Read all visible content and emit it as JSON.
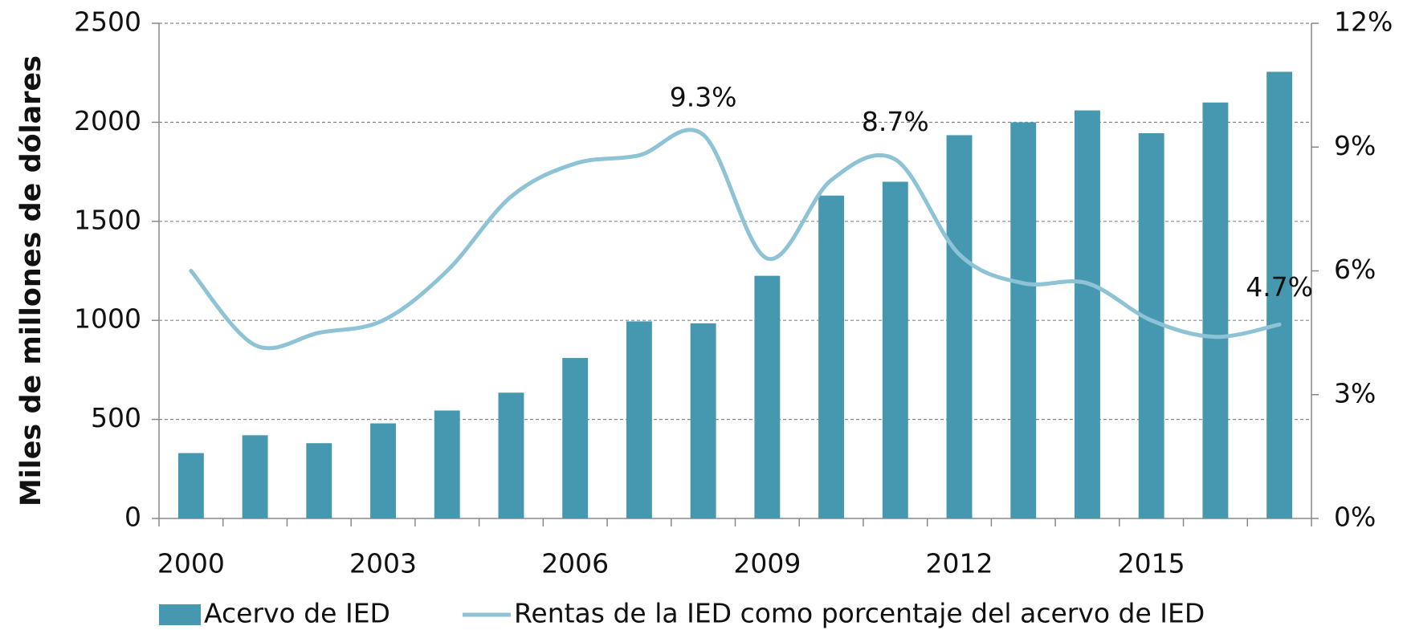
{
  "chart_data": {
    "type": "bar-line",
    "y_label": "Miles de millones de dólares",
    "categories": [
      "2000",
      null,
      null,
      "2003",
      null,
      null,
      "2006",
      null,
      null,
      "2009",
      null,
      null,
      "2012",
      null,
      null,
      "2015",
      null,
      null
    ],
    "series": [
      {
        "name": "Acervo de IED",
        "color": "#4598b0",
        "type": "bar",
        "values": [
          330,
          420,
          380,
          480,
          545,
          635,
          810,
          995,
          985,
          1225,
          1630,
          1700,
          1935,
          2000,
          2060,
          1945,
          2100,
          2255
        ]
      },
      {
        "name": "Rentas de la IED como porcentaje del acervo de IED",
        "color": "#8ec3d6",
        "type": "line",
        "axis": "y2",
        "values": [
          6.0,
          4.2,
          4.5,
          4.8,
          6.0,
          7.8,
          8.6,
          8.8,
          9.3,
          6.3,
          8.2,
          8.7,
          6.4,
          5.7,
          5.7,
          4.8,
          4.4,
          4.7
        ],
        "value_labels": [
          null,
          null,
          null,
          null,
          null,
          null,
          null,
          null,
          "9.3%",
          null,
          null,
          "8.7%",
          null,
          null,
          null,
          null,
          null,
          "4.7%"
        ]
      }
    ],
    "ylim": [
      0,
      2500
    ],
    "yticks": [
      0,
      500,
      1000,
      1500,
      2000,
      2500
    ],
    "y2lim": [
      0,
      12
    ],
    "y2ticks": [
      {
        "value": 0,
        "label": "0%"
      },
      {
        "value": 3,
        "label": "3%"
      },
      {
        "value": 6,
        "label": "6%"
      },
      {
        "value": 9,
        "label": "9%"
      },
      {
        "value": 12,
        "label": "12%"
      }
    ],
    "grid": true,
    "legend": "bottom"
  }
}
